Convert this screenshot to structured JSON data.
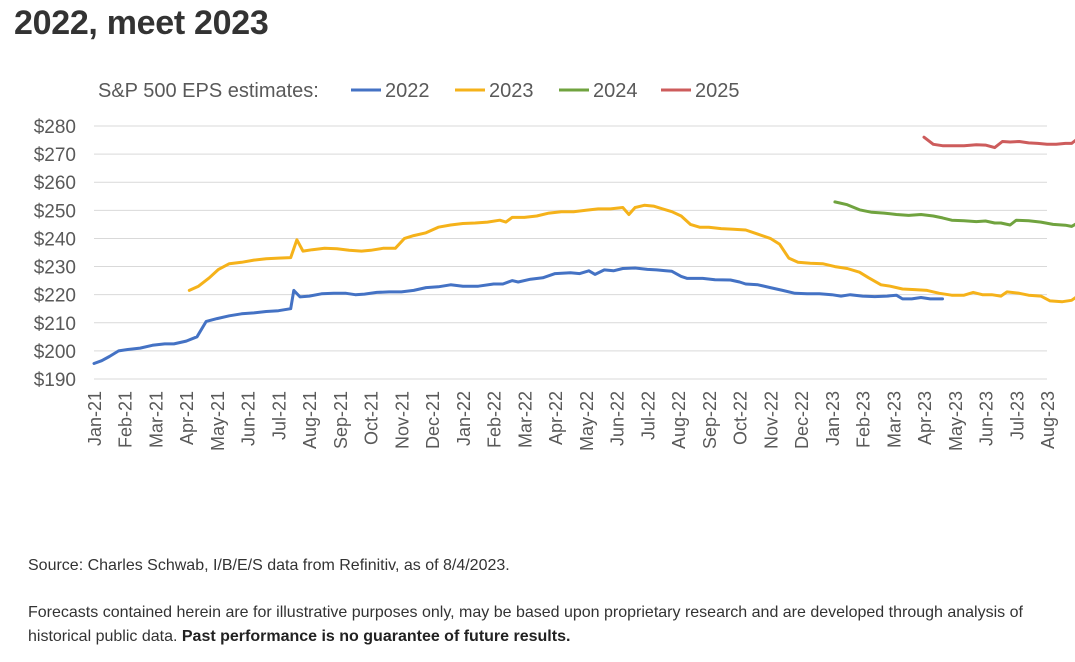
{
  "header": {
    "title": "2022, meet 2023"
  },
  "footer": {
    "source": "Source: Charles Schwab, I/B/E/S data from Refinitiv, as of 8/4/2023.",
    "disclaimer_text": "Forecasts contained herein are for illustrative purposes only, may be based upon proprietary research and are developed through analysis of historical public data.",
    "disclaimer_bold": "Past performance is no guarantee of future results."
  },
  "chart_data": {
    "type": "line",
    "legend_title": "S&P 500 EPS estimates:",
    "legend_placement": "top-left",
    "grid": true,
    "xlabel": "",
    "ylabel": "",
    "x_tick_labels": [
      "Jan-21",
      "Feb-21",
      "Mar-21",
      "Apr-21",
      "May-21",
      "Jun-21",
      "Jul-21",
      "Aug-21",
      "Sep-21",
      "Oct-21",
      "Nov-21",
      "Dec-21",
      "Jan-22",
      "Feb-22",
      "Mar-22",
      "Apr-22",
      "May-22",
      "Jun-22",
      "Jul-22",
      "Aug-22",
      "Sep-22",
      "Oct-22",
      "Nov-22",
      "Dec-22",
      "Jan-23",
      "Feb-23",
      "Mar-23",
      "Apr-23",
      "May-23",
      "Jun-23",
      "Jul-23",
      "Aug-23"
    ],
    "y_tick_labels": [
      "$190",
      "$200",
      "$210",
      "$220",
      "$230",
      "$240",
      "$250",
      "$260",
      "$270",
      "$280"
    ],
    "ylim": [
      190,
      280
    ],
    "colors": {
      "2022": "#4472c4",
      "2023": "#f5b21a",
      "2024": "#70a33f",
      "2025": "#cd5c5c",
      "grid": "#d9d9d9",
      "text": "#595959"
    },
    "series": [
      {
        "name": "2022",
        "points": [
          [
            0,
            195.5
          ],
          [
            0.25,
            196.5
          ],
          [
            0.5,
            198
          ],
          [
            0.8,
            200
          ],
          [
            1.1,
            200.5
          ],
          [
            1.5,
            201
          ],
          [
            1.9,
            202
          ],
          [
            2.3,
            202.5
          ],
          [
            2.6,
            202.5
          ],
          [
            3.0,
            203.5
          ],
          [
            3.35,
            205
          ],
          [
            3.65,
            210.5
          ],
          [
            4.0,
            211.5
          ],
          [
            4.4,
            212.5
          ],
          [
            4.8,
            213.2
          ],
          [
            5.2,
            213.5
          ],
          [
            5.6,
            214
          ],
          [
            6.0,
            214.3
          ],
          [
            6.4,
            215
          ],
          [
            6.5,
            221.5
          ],
          [
            6.7,
            219.2
          ],
          [
            7.0,
            219.5
          ],
          [
            7.4,
            220.3
          ],
          [
            7.8,
            220.5
          ],
          [
            8.2,
            220.5
          ],
          [
            8.5,
            220
          ],
          [
            8.8,
            220.2
          ],
          [
            9.2,
            220.8
          ],
          [
            9.6,
            221
          ],
          [
            10.0,
            221
          ],
          [
            10.4,
            221.5
          ],
          [
            10.8,
            222.5
          ],
          [
            11.2,
            222.8
          ],
          [
            11.6,
            223.5
          ],
          [
            12.0,
            223
          ],
          [
            12.5,
            223
          ],
          [
            13.0,
            223.8
          ],
          [
            13.3,
            223.8
          ],
          [
            13.6,
            225
          ],
          [
            13.8,
            224.5
          ],
          [
            14.2,
            225.5
          ],
          [
            14.6,
            226
          ],
          [
            15.0,
            227.5
          ],
          [
            15.5,
            227.8
          ],
          [
            15.8,
            227.5
          ],
          [
            16.1,
            228.5
          ],
          [
            16.3,
            227.2
          ],
          [
            16.6,
            228.8
          ],
          [
            16.9,
            228.5
          ],
          [
            17.2,
            229.3
          ],
          [
            17.6,
            229.5
          ],
          [
            18.0,
            229
          ],
          [
            18.3,
            228.8
          ],
          [
            18.6,
            228.5
          ],
          [
            18.8,
            228.3
          ],
          [
            19.1,
            226.5
          ],
          [
            19.3,
            225.8
          ],
          [
            19.8,
            225.8
          ],
          [
            20.2,
            225.3
          ],
          [
            20.7,
            225.2
          ],
          [
            21.0,
            224.5
          ],
          [
            21.2,
            223.8
          ],
          [
            21.6,
            223.5
          ],
          [
            22.0,
            222.5
          ],
          [
            22.4,
            221.5
          ],
          [
            22.8,
            220.5
          ],
          [
            23.2,
            220.3
          ],
          [
            23.6,
            220.3
          ],
          [
            24.0,
            220
          ],
          [
            24.3,
            219.5
          ],
          [
            24.6,
            220
          ],
          [
            25.0,
            219.5
          ],
          [
            25.4,
            219.3
          ],
          [
            25.8,
            219.5
          ],
          [
            26.1,
            219.8
          ],
          [
            26.3,
            218.5
          ],
          [
            26.6,
            218.5
          ],
          [
            26.9,
            219
          ],
          [
            27.2,
            218.5
          ],
          [
            27.6,
            218.5
          ]
        ]
      },
      {
        "name": "2023",
        "points": [
          [
            3.1,
            221.5
          ],
          [
            3.4,
            223
          ],
          [
            3.75,
            226
          ],
          [
            4.05,
            229
          ],
          [
            4.4,
            231
          ],
          [
            4.8,
            231.5
          ],
          [
            5.2,
            232.3
          ],
          [
            5.6,
            232.8
          ],
          [
            6.0,
            233
          ],
          [
            6.4,
            233.2
          ],
          [
            6.6,
            239.5
          ],
          [
            6.8,
            235.5
          ],
          [
            7.1,
            236
          ],
          [
            7.5,
            236.5
          ],
          [
            7.9,
            236.3
          ],
          [
            8.3,
            235.8
          ],
          [
            8.7,
            235.5
          ],
          [
            9.0,
            235.8
          ],
          [
            9.4,
            236.5
          ],
          [
            9.8,
            236.5
          ],
          [
            10.1,
            240
          ],
          [
            10.4,
            241
          ],
          [
            10.8,
            242
          ],
          [
            11.2,
            244
          ],
          [
            11.6,
            244.8
          ],
          [
            12.0,
            245.3
          ],
          [
            12.4,
            245.5
          ],
          [
            12.8,
            245.8
          ],
          [
            13.2,
            246.5
          ],
          [
            13.4,
            245.8
          ],
          [
            13.6,
            247.5
          ],
          [
            14.0,
            247.5
          ],
          [
            14.4,
            248
          ],
          [
            14.8,
            249
          ],
          [
            15.2,
            249.5
          ],
          [
            15.6,
            249.5
          ],
          [
            16.0,
            250
          ],
          [
            16.4,
            250.5
          ],
          [
            16.8,
            250.5
          ],
          [
            17.2,
            251
          ],
          [
            17.4,
            248.5
          ],
          [
            17.6,
            251
          ],
          [
            17.9,
            251.8
          ],
          [
            18.2,
            251.5
          ],
          [
            18.5,
            250.5
          ],
          [
            18.8,
            249.5
          ],
          [
            19.1,
            248
          ],
          [
            19.4,
            245
          ],
          [
            19.7,
            244
          ],
          [
            20.0,
            244
          ],
          [
            20.4,
            243.5
          ],
          [
            20.8,
            243.3
          ],
          [
            21.2,
            243
          ],
          [
            21.6,
            241.5
          ],
          [
            22.0,
            240
          ],
          [
            22.3,
            238
          ],
          [
            22.6,
            233
          ],
          [
            22.9,
            231.5
          ],
          [
            23.3,
            231.2
          ],
          [
            23.7,
            231
          ],
          [
            24.1,
            230
          ],
          [
            24.5,
            229.3
          ],
          [
            24.9,
            228
          ],
          [
            25.2,
            226
          ],
          [
            25.6,
            223.5
          ],
          [
            25.9,
            223
          ],
          [
            26.3,
            222
          ],
          [
            26.7,
            221.8
          ],
          [
            27.1,
            221.5
          ],
          [
            27.5,
            220.5
          ],
          [
            27.9,
            219.8
          ],
          [
            28.3,
            219.8
          ],
          [
            28.6,
            220.8
          ],
          [
            28.9,
            220
          ],
          [
            29.2,
            220
          ],
          [
            29.5,
            219.5
          ],
          [
            29.7,
            221
          ],
          [
            30.1,
            220.5
          ],
          [
            30.4,
            219.8
          ],
          [
            30.8,
            219.5
          ],
          [
            31.1,
            217.8
          ],
          [
            31.5,
            217.5
          ],
          [
            31.8,
            218
          ],
          [
            32.0,
            219.5
          ]
        ]
      },
      {
        "name": "2024",
        "points": [
          [
            24.1,
            253
          ],
          [
            24.5,
            252
          ],
          [
            24.9,
            250.2
          ],
          [
            25.3,
            249.3
          ],
          [
            25.7,
            249
          ],
          [
            26.1,
            248.5
          ],
          [
            26.5,
            248.2
          ],
          [
            26.9,
            248.5
          ],
          [
            27.3,
            248
          ],
          [
            27.6,
            247.3
          ],
          [
            27.9,
            246.5
          ],
          [
            28.3,
            246.3
          ],
          [
            28.7,
            246
          ],
          [
            29.0,
            246.2
          ],
          [
            29.3,
            245.5
          ],
          [
            29.5,
            245.5
          ],
          [
            29.8,
            244.8
          ],
          [
            30.0,
            246.5
          ],
          [
            30.4,
            246.3
          ],
          [
            30.8,
            245.8
          ],
          [
            31.2,
            245
          ],
          [
            31.6,
            244.7
          ],
          [
            31.8,
            244.3
          ],
          [
            32.0,
            245.5
          ]
        ]
      },
      {
        "name": "2025",
        "points": [
          [
            27.0,
            276
          ],
          [
            27.3,
            273.5
          ],
          [
            27.6,
            273
          ],
          [
            28.0,
            273
          ],
          [
            28.3,
            273
          ],
          [
            28.7,
            273.3
          ],
          [
            29.0,
            273.2
          ],
          [
            29.3,
            272.3
          ],
          [
            29.55,
            274.5
          ],
          [
            29.8,
            274.3
          ],
          [
            30.1,
            274.5
          ],
          [
            30.4,
            274
          ],
          [
            30.7,
            273.8
          ],
          [
            31.0,
            273.5
          ],
          [
            31.3,
            273.5
          ],
          [
            31.6,
            273.8
          ],
          [
            31.8,
            273.8
          ],
          [
            32.0,
            275.5
          ]
        ]
      }
    ]
  }
}
